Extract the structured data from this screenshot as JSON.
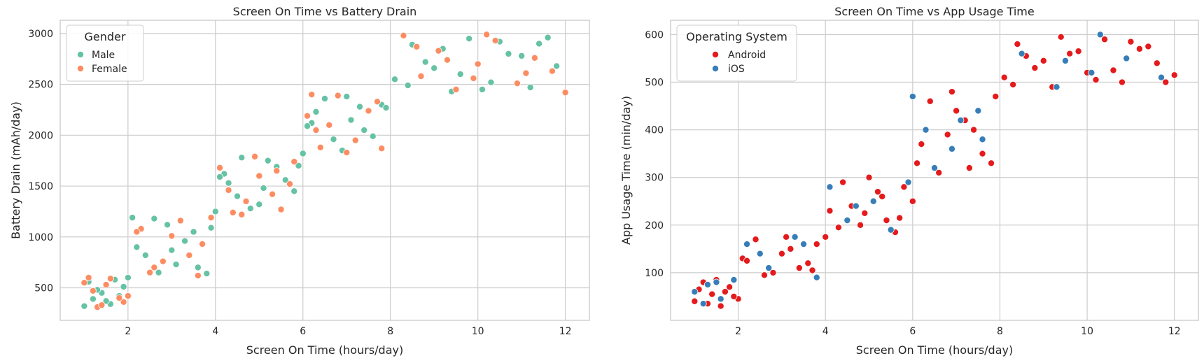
{
  "chart_data": [
    {
      "type": "scatter",
      "title": "Screen On Time vs Battery Drain",
      "xlabel": "Screen On Time (hours/day)",
      "ylabel": "Battery Drain (mAh/day)",
      "xlim": [
        0.45,
        12.55
      ],
      "ylim": [
        180,
        3130
      ],
      "xticks": [
        2,
        4,
        6,
        8,
        10,
        12
      ],
      "yticks": [
        500,
        1000,
        1500,
        2000,
        2500,
        3000
      ],
      "grid": true,
      "legend": {
        "title": "Gender",
        "placement": "top-left"
      },
      "series": [
        {
          "name": "Male",
          "color": "#66c2a5",
          "x": [
            1.0,
            1.4,
            1.7,
            1.2,
            1.9,
            1.1,
            1.6,
            1.3,
            1.8,
            1.5,
            2.0,
            2.2,
            2.6,
            3.1,
            3.5,
            3.8,
            2.4,
            2.9,
            3.3,
            3.6,
            2.1,
            2.7,
            3.9,
            3.0,
            4.0,
            4.3,
            4.6,
            5.0,
            5.4,
            5.8,
            4.2,
            4.8,
            5.2,
            5.6,
            4.5,
            5.9,
            4.1,
            5.1,
            6.0,
            6.3,
            6.7,
            7.0,
            7.4,
            7.8,
            6.2,
            6.9,
            7.3,
            7.6,
            6.5,
            7.1,
            6.1,
            7.9,
            8.1,
            8.5,
            9.0,
            9.4,
            9.8,
            10.3,
            10.7,
            11.2,
            11.6,
            8.8,
            9.6,
            10.5,
            11.0,
            11.8,
            9.2,
            10.1,
            8.4,
            11.4
          ],
          "y": [
            320,
            450,
            580,
            390,
            510,
            560,
            340,
            480,
            420,
            370,
            600,
            900,
            1180,
            730,
            1050,
            640,
            820,
            1120,
            960,
            700,
            1190,
            650,
            1090,
            870,
            1250,
            1530,
            1780,
            1320,
            1690,
            1450,
            1620,
            1280,
            1750,
            1560,
            1400,
            1700,
            1590,
            1480,
            1820,
            2230,
            1960,
            2380,
            2050,
            2300,
            2120,
            1850,
            2280,
            1990,
            2360,
            2150,
            2090,
            2270,
            2550,
            2890,
            2660,
            2430,
            2950,
            2520,
            2800,
            2470,
            2960,
            2720,
            2600,
            2920,
            2780,
            2680,
            2850,
            2450,
            2490,
            2900
          ]
        },
        {
          "name": "Female",
          "color": "#fc8d62",
          "x": [
            1.0,
            1.3,
            1.6,
            1.9,
            1.2,
            1.5,
            1.8,
            1.1,
            1.4,
            2.0,
            2.3,
            2.8,
            3.2,
            3.7,
            2.5,
            3.0,
            3.4,
            3.9,
            2.2,
            2.6,
            3.6,
            4.1,
            4.4,
            4.9,
            5.3,
            5.7,
            4.7,
            5.0,
            5.5,
            4.3,
            5.8,
            4.6,
            5.4,
            6.1,
            6.4,
            6.8,
            7.2,
            7.7,
            6.6,
            7.0,
            7.5,
            6.3,
            7.8,
            6.2,
            8.3,
            8.7,
            9.1,
            9.5,
            10.0,
            10.4,
            10.9,
            11.3,
            11.7,
            12.0,
            8.6,
            9.3,
            10.2,
            11.1,
            9.9
          ],
          "y": [
            550,
            310,
            590,
            360,
            470,
            530,
            400,
            600,
            330,
            420,
            1080,
            760,
            1160,
            930,
            650,
            1010,
            820,
            1190,
            1050,
            700,
            620,
            1680,
            1240,
            1790,
            1420,
            1520,
            1350,
            1600,
            1270,
            1460,
            1740,
            1220,
            1650,
            2190,
            1880,
            2390,
            1950,
            2330,
            2100,
            1830,
            2240,
            2050,
            1870,
            2400,
            2980,
            2580,
            2830,
            2450,
            2700,
            2930,
            2510,
            2760,
            2630,
            2420,
            2870,
            2740,
            2990,
            2610,
            2560
          ]
        }
      ]
    },
    {
      "type": "scatter",
      "title": "Screen On Time vs App Usage Time",
      "xlabel": "Screen On Time (hours/day)",
      "ylabel": "App Usage Time (min/day)",
      "xlim": [
        0.45,
        12.55
      ],
      "ylim": [
        0,
        630
      ],
      "xticks": [
        2,
        4,
        6,
        8,
        10,
        12
      ],
      "yticks": [
        100,
        200,
        300,
        400,
        500,
        600
      ],
      "grid": true,
      "legend": {
        "title": "Operating System",
        "placement": "top-left"
      },
      "series": [
        {
          "name": "Android",
          "color": "#e41a1c",
          "x": [
            1.0,
            1.2,
            1.4,
            1.6,
            1.8,
            2.0,
            1.1,
            1.5,
            1.9,
            1.3,
            1.7,
            2.1,
            2.4,
            2.8,
            3.2,
            3.6,
            4.0,
            2.6,
            3.0,
            3.4,
            3.8,
            2.2,
            3.1,
            3.7,
            4.1,
            4.4,
            4.8,
            5.2,
            5.6,
            6.0,
            4.6,
            5.0,
            5.4,
            5.8,
            4.3,
            5.3,
            4.9,
            5.7,
            6.1,
            6.4,
            6.8,
            7.2,
            7.6,
            7.9,
            6.6,
            7.0,
            7.4,
            6.2,
            7.8,
            6.9,
            7.3,
            8.1,
            8.4,
            8.8,
            9.2,
            9.6,
            10.0,
            10.4,
            10.8,
            11.2,
            11.6,
            12.0,
            8.6,
            9.4,
            10.2,
            11.0,
            11.8,
            9.0,
            10.6,
            11.4,
            8.3,
            9.8
          ],
          "y": [
            40,
            80,
            55,
            30,
            70,
            45,
            65,
            85,
            50,
            35,
            60,
            130,
            170,
            100,
            150,
            120,
            175,
            95,
            140,
            110,
            160,
            125,
            175,
            105,
            230,
            290,
            200,
            270,
            185,
            250,
            240,
            300,
            210,
            280,
            195,
            260,
            225,
            215,
            330,
            460,
            390,
            420,
            350,
            470,
            310,
            440,
            400,
            370,
            330,
            480,
            320,
            510,
            580,
            530,
            490,
            560,
            520,
            590,
            500,
            570,
            540,
            515,
            555,
            595,
            505,
            585,
            500,
            545,
            525,
            575,
            495,
            565
          ]
        },
        {
          "name": "iOS",
          "color": "#377eb8",
          "x": [
            1.0,
            1.3,
            1.6,
            1.9,
            1.2,
            1.5,
            2.2,
            2.7,
            3.3,
            3.8,
            2.5,
            3.5,
            4.1,
            4.5,
            5.1,
            5.5,
            5.9,
            4.7,
            6.0,
            6.5,
            7.1,
            7.6,
            6.9,
            6.3,
            7.5,
            8.5,
            9.3,
            10.1,
            10.9,
            11.7,
            9.5,
            10.3
          ],
          "y": [
            60,
            75,
            45,
            85,
            35,
            80,
            160,
            110,
            175,
            90,
            140,
            160,
            280,
            210,
            250,
            190,
            290,
            240,
            470,
            320,
            420,
            380,
            360,
            400,
            440,
            560,
            490,
            520,
            550,
            510,
            545,
            600
          ]
        }
      ]
    }
  ]
}
